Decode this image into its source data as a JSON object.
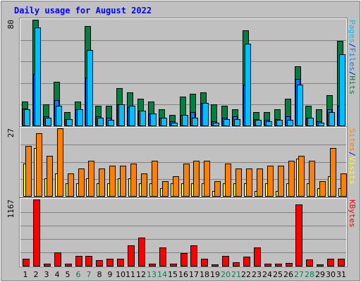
{
  "title": "Daily usage for August 2022",
  "colors": {
    "background": "#c0c0c0",
    "panel": "#c0c0c0",
    "title": "#0000ff",
    "hits": "#008040",
    "files": "#0080ff",
    "pages": "#00c0ff",
    "visits": "#ffff00",
    "sites": "#ff8000",
    "kbytes": "#ff0000",
    "grid": "#808080",
    "weekend": "#00805c",
    "weekday": "#000000"
  },
  "chart_data": {
    "type": "bar",
    "title": "Daily usage for August 2022",
    "categories": [
      "1",
      "2",
      "3",
      "4",
      "5",
      "6",
      "7",
      "8",
      "9",
      "10",
      "11",
      "12",
      "13",
      "14",
      "15",
      "16",
      "17",
      "18",
      "19",
      "20",
      "21",
      "22",
      "23",
      "24",
      "25",
      "26",
      "27",
      "28",
      "29",
      "30",
      "31"
    ],
    "weekend_days": [
      "6",
      "7",
      "13",
      "14",
      "20",
      "21",
      "27",
      "28"
    ],
    "panels": [
      {
        "name": "top",
        "max_label": "80",
        "ylim": [
          0,
          80
        ],
        "side_label": [
          "Pages",
          "/",
          "Files",
          "/",
          "Hits"
        ],
        "side_label_colors": [
          "pages",
          "title",
          "files",
          "title",
          "hits"
        ],
        "series": [
          {
            "name": "Hits",
            "color_key": "hits",
            "values": [
              18,
              80,
              16,
              33,
              10,
              18,
              75,
              15,
              15,
              28,
              25,
              20,
              18,
              12,
              8,
              22,
              24,
              25,
              16,
              15,
              12,
              72,
              10,
              10,
              12,
              20,
              45,
              15,
              12,
              23,
              64
            ]
          },
          {
            "name": "Files",
            "color_key": "files",
            "values": [
              13,
              39,
              7,
              19,
              5,
              12,
              36,
              7,
              6,
              16,
              14,
              11,
              9,
              6,
              3,
              8,
              10,
              17,
              3,
              6,
              7,
              31,
              5,
              4,
              5,
              7,
              35,
              6,
              3,
              12,
              15
            ]
          },
          {
            "name": "Pages",
            "color_key": "pages",
            "values": [
              12,
              74,
              6,
              15,
              5,
              12,
              57,
              6,
              4,
              16,
              15,
              11,
              9,
              6,
              2,
              8,
              6,
              17,
              2,
              5,
              5,
              62,
              4,
              3,
              4,
              4,
              31,
              6,
              2,
              10,
              54
            ]
          }
        ]
      },
      {
        "name": "middle",
        "max_label": "27",
        "ylim": [
          0,
          27
        ],
        "side_label": [
          "Sites",
          "/",
          "Visits"
        ],
        "side_label_colors": [
          "sites",
          "title",
          "visits"
        ],
        "series": [
          {
            "name": "Visits",
            "color_key": "visits",
            "values": [
              13,
              19,
              7,
              9,
              5,
              5,
              7,
              5,
              5,
              7,
              7,
              5,
              5,
              3,
              5,
              5,
              5,
              5,
              2,
              5,
              5,
              5,
              2,
              5,
              2,
              5,
              15,
              5,
              3,
              8,
              3
            ]
          },
          {
            "name": "Sites",
            "color_key": "sites",
            "values": [
              20,
              25,
              16,
              27,
              9,
              11,
              14,
              11,
              12,
              12,
              13,
              9,
              14,
              6,
              8,
              13,
              14,
              14,
              6,
              13,
              11,
              11,
              11,
              12,
              12,
              14,
              16,
              14,
              6,
              19,
              9
            ]
          }
        ]
      },
      {
        "name": "bottom",
        "max_label": "1167",
        "ylim": [
          0,
          1167
        ],
        "side_label": [
          "KBytes"
        ],
        "side_label_colors": [
          "kbytes"
        ],
        "series": [
          {
            "name": "KBytes",
            "color_key": "kbytes",
            "values": [
              122,
              1167,
              41,
              237,
              34,
              179,
              170,
              102,
              118,
              124,
              361,
              496,
              41,
              321,
              33,
              228,
              362,
              130,
              30,
              179,
              65,
              161,
              328,
              35,
              42,
              45,
              1085,
              113,
              25,
              123,
              127
            ]
          }
        ]
      }
    ]
  }
}
